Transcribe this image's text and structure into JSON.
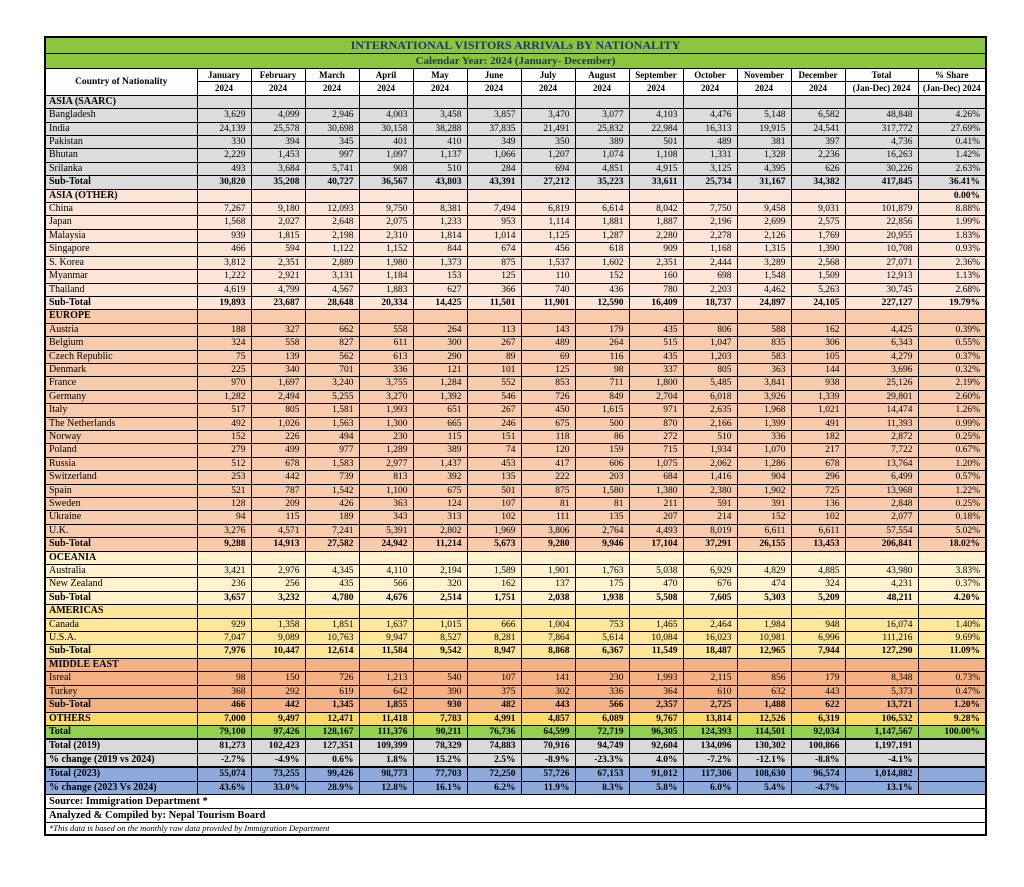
{
  "title": "INTERNATIONAL VISITORS ARRIVALs BY NATIONALITY",
  "subtitle": "Calendar Year: 2024 (January- December)",
  "colors": {
    "header_green": "#8cc63e",
    "band_green": "#92d050",
    "navy_text": "#1f3864",
    "saarc_gray": "#dcdcdc",
    "asia_other_peach": "#fce4d6",
    "europe_peach": "#f8cbad",
    "oceania_cream": "#fff2cc",
    "americas_yellow": "#ffe699",
    "middle_east_orange": "#f4b183",
    "others_gold": "#ffd966",
    "summary_gray": "#d9d9d9",
    "summary_blue": "#8eaadb"
  },
  "columns": {
    "country": "Country of Nationality",
    "months": [
      "January",
      "February",
      "March",
      "April",
      "May",
      "June",
      "July",
      "August",
      "September",
      "October",
      "November",
      "December"
    ],
    "year": "2024",
    "total_label": "Total",
    "total_sub": "(Jan-Dec) 2024",
    "share_label": "% Share",
    "share_sub": "(Jan-Dec) 2024"
  },
  "sections": [
    {
      "name": "ASIA (SAARC)",
      "bg": "#dcdcdc",
      "header_share": "",
      "countries": [
        {
          "name": "Bangladesh",
          "values": [
            "3,629",
            "4,099",
            "2,946",
            "4,003",
            "3,458",
            "3,857",
            "3,470",
            "3,077",
            "4,103",
            "4,476",
            "5,148",
            "6,582"
          ],
          "total": "48,848",
          "share": "4.26%"
        },
        {
          "name": "India",
          "values": [
            "24,139",
            "25,578",
            "30,698",
            "30,158",
            "38,288",
            "37,835",
            "21,491",
            "25,832",
            "22,984",
            "16,313",
            "19,915",
            "24,541"
          ],
          "total": "317,772",
          "share": "27.69%"
        },
        {
          "name": "Pakistan",
          "values": [
            "330",
            "394",
            "345",
            "401",
            "410",
            "349",
            "350",
            "389",
            "501",
            "489",
            "381",
            "397"
          ],
          "total": "4,736",
          "share": "0.41%"
        },
        {
          "name": "Bhutan",
          "values": [
            "2,229",
            "1,453",
            "997",
            "1,097",
            "1,137",
            "1,066",
            "1,207",
            "1,074",
            "1,108",
            "1,331",
            "1,328",
            "2,236"
          ],
          "total": "16,263",
          "share": "1.42%"
        },
        {
          "name": "Srilanka",
          "values": [
            "493",
            "3,684",
            "5,741",
            "908",
            "510",
            "284",
            "694",
            "4,851",
            "4,915",
            "3,125",
            "4,395",
            "626"
          ],
          "total": "30,226",
          "share": "2.63%"
        }
      ],
      "subtotal": {
        "name": "Sub-Total",
        "values": [
          "30,820",
          "35,208",
          "40,727",
          "36,567",
          "43,803",
          "43,391",
          "27,212",
          "35,223",
          "33,611",
          "25,734",
          "31,167",
          "34,382"
        ],
        "total": "417,845",
        "share": "36.41%"
      }
    },
    {
      "name": "ASIA (OTHER)",
      "bg": "#fce4d6",
      "header_share": "0.00%",
      "countries": [
        {
          "name": "China",
          "values": [
            "7,267",
            "9,180",
            "12,093",
            "9,750",
            "8,381",
            "7,494",
            "6,819",
            "6,614",
            "8,042",
            "7,750",
            "9,458",
            "9,031"
          ],
          "total": "101,879",
          "share": "8.88%"
        },
        {
          "name": "Japan",
          "values": [
            "1,568",
            "2,027",
            "2,648",
            "2,075",
            "1,233",
            "953",
            "1,114",
            "1,881",
            "1,887",
            "2,196",
            "2,699",
            "2,575"
          ],
          "total": "22,856",
          "share": "1.99%"
        },
        {
          "name": "Malaysia",
          "values": [
            "939",
            "1,815",
            "2,198",
            "2,310",
            "1,814",
            "1,014",
            "1,125",
            "1,287",
            "2,280",
            "2,278",
            "2,126",
            "1,769"
          ],
          "total": "20,955",
          "share": "1.83%"
        },
        {
          "name": "Singapore",
          "values": [
            "466",
            "594",
            "1,122",
            "1,152",
            "844",
            "674",
            "456",
            "618",
            "909",
            "1,168",
            "1,315",
            "1,390"
          ],
          "total": "10,708",
          "share": "0.93%"
        },
        {
          "name": "S. Korea",
          "values": [
            "3,812",
            "2,351",
            "2,889",
            "1,980",
            "1,373",
            "875",
            "1,537",
            "1,602",
            "2,351",
            "2,444",
            "3,289",
            "2,568"
          ],
          "total": "27,071",
          "share": "2.36%"
        },
        {
          "name": "Myanmar",
          "values": [
            "1,222",
            "2,921",
            "3,131",
            "1,184",
            "153",
            "125",
            "110",
            "152",
            "160",
            "698",
            "1,548",
            "1,509"
          ],
          "total": "12,913",
          "share": "1.13%"
        },
        {
          "name": "Thailand",
          "values": [
            "4,619",
            "4,799",
            "4,567",
            "1,883",
            "627",
            "366",
            "740",
            "436",
            "780",
            "2,203",
            "4,462",
            "5,263"
          ],
          "total": "30,745",
          "share": "2.68%"
        }
      ],
      "subtotal": {
        "name": "Sub-Total",
        "values": [
          "19,893",
          "23,687",
          "28,648",
          "20,334",
          "14,425",
          "11,501",
          "11,901",
          "12,590",
          "16,409",
          "18,737",
          "24,897",
          "24,105"
        ],
        "total": "227,127",
        "share": "19.79%"
      }
    },
    {
      "name": "EUROPE",
      "bg": "#f8cbad",
      "header_share": "",
      "countries": [
        {
          "name": "Austria",
          "values": [
            "188",
            "327",
            "662",
            "558",
            "264",
            "113",
            "143",
            "179",
            "435",
            "806",
            "588",
            "162"
          ],
          "total": "4,425",
          "share": "0.39%"
        },
        {
          "name": "Belgium",
          "values": [
            "324",
            "558",
            "827",
            "611",
            "300",
            "267",
            "489",
            "264",
            "515",
            "1,047",
            "835",
            "306"
          ],
          "total": "6,343",
          "share": "0.55%"
        },
        {
          "name": "Czech Republic",
          "values": [
            "75",
            "139",
            "562",
            "613",
            "290",
            "89",
            "69",
            "116",
            "435",
            "1,203",
            "583",
            "105"
          ],
          "total": "4,279",
          "share": "0.37%"
        },
        {
          "name": "Denmark",
          "values": [
            "225",
            "340",
            "701",
            "336",
            "121",
            "101",
            "125",
            "98",
            "337",
            "805",
            "363",
            "144"
          ],
          "total": "3,696",
          "share": "0.32%"
        },
        {
          "name": "France",
          "values": [
            "970",
            "1,697",
            "3,240",
            "3,755",
            "1,284",
            "552",
            "853",
            "711",
            "1,800",
            "5,485",
            "3,841",
            "938"
          ],
          "total": "25,126",
          "share": "2.19%"
        },
        {
          "name": "Germany",
          "values": [
            "1,282",
            "2,494",
            "5,255",
            "3,270",
            "1,392",
            "546",
            "726",
            "849",
            "2,704",
            "6,018",
            "3,926",
            "1,339"
          ],
          "total": "29,801",
          "share": "2.60%"
        },
        {
          "name": "Italy",
          "values": [
            "517",
            "805",
            "1,581",
            "1,993",
            "651",
            "267",
            "450",
            "1,615",
            "971",
            "2,635",
            "1,968",
            "1,021"
          ],
          "total": "14,474",
          "share": "1.26%"
        },
        {
          "name": "The Netherlands",
          "values": [
            "492",
            "1,026",
            "1,563",
            "1,300",
            "665",
            "246",
            "675",
            "500",
            "870",
            "2,166",
            "1,399",
            "491"
          ],
          "total": "11,393",
          "share": "0.99%"
        },
        {
          "name": "Norway",
          "values": [
            "152",
            "226",
            "494",
            "230",
            "115",
            "151",
            "118",
            "86",
            "272",
            "510",
            "336",
            "182"
          ],
          "total": "2,872",
          "share": "0.25%"
        },
        {
          "name": "Poland",
          "values": [
            "279",
            "499",
            "977",
            "1,289",
            "389",
            "74",
            "120",
            "159",
            "715",
            "1,934",
            "1,070",
            "217"
          ],
          "total": "7,722",
          "share": "0.67%"
        },
        {
          "name": "Russia",
          "values": [
            "512",
            "678",
            "1,583",
            "2,977",
            "1,437",
            "453",
            "417",
            "606",
            "1,075",
            "2,062",
            "1,286",
            "678"
          ],
          "total": "13,764",
          "share": "1.20%"
        },
        {
          "name": "Switzerland",
          "values": [
            "253",
            "442",
            "739",
            "813",
            "392",
            "135",
            "222",
            "203",
            "684",
            "1,416",
            "904",
            "296"
          ],
          "total": "6,499",
          "share": "0.57%"
        },
        {
          "name": "Spain",
          "values": [
            "521",
            "787",
            "1,542",
            "1,100",
            "675",
            "501",
            "875",
            "1,580",
            "1,380",
            "2,380",
            "1,902",
            "725"
          ],
          "total": "13,968",
          "share": "1.22%"
        },
        {
          "name": "Sweden",
          "values": [
            "128",
            "209",
            "426",
            "363",
            "124",
            "107",
            "81",
            "81",
            "211",
            "591",
            "391",
            "136"
          ],
          "total": "2,848",
          "share": "0.25%"
        },
        {
          "name": "Ukraine",
          "values": [
            "94",
            "115",
            "189",
            "343",
            "313",
            "102",
            "111",
            "135",
            "207",
            "214",
            "152",
            "102"
          ],
          "total": "2,077",
          "share": "0.18%"
        },
        {
          "name": "U.K.",
          "values": [
            "3,276",
            "4,571",
            "7,241",
            "5,391",
            "2,802",
            "1,969",
            "3,806",
            "2,764",
            "4,493",
            "8,019",
            "6,611",
            "6,611"
          ],
          "total": "57,554",
          "share": "5.02%"
        }
      ],
      "subtotal": {
        "name": "Sub-Total",
        "values": [
          "9,288",
          "14,913",
          "27,582",
          "24,942",
          "11,214",
          "5,673",
          "9,280",
          "9,946",
          "17,104",
          "37,291",
          "26,155",
          "13,453"
        ],
        "total": "206,841",
        "share": "18.02%"
      }
    },
    {
      "name": "OCEANIA",
      "bg": "#fff2cc",
      "header_share": "",
      "countries": [
        {
          "name": "Australia",
          "values": [
            "3,421",
            "2,976",
            "4,345",
            "4,110",
            "2,194",
            "1,589",
            "1,901",
            "1,763",
            "5,038",
            "6,929",
            "4,829",
            "4,885"
          ],
          "total": "43,980",
          "share": "3.83%"
        },
        {
          "name": "New Zealand",
          "values": [
            "236",
            "256",
            "435",
            "566",
            "320",
            "162",
            "137",
            "175",
            "470",
            "676",
            "474",
            "324"
          ],
          "total": "4,231",
          "share": "0.37%"
        }
      ],
      "subtotal": {
        "name": "Sub-Total",
        "values": [
          "3,657",
          "3,232",
          "4,780",
          "4,676",
          "2,514",
          "1,751",
          "2,038",
          "1,938",
          "5,508",
          "7,605",
          "5,303",
          "5,209"
        ],
        "total": "48,211",
        "share": "4.20%"
      }
    },
    {
      "name": "AMERICAS",
      "bg": "#ffe699",
      "header_share": "",
      "countries": [
        {
          "name": "Canada",
          "values": [
            "929",
            "1,358",
            "1,851",
            "1,637",
            "1,015",
            "666",
            "1,004",
            "753",
            "1,465",
            "2,464",
            "1,984",
            "948"
          ],
          "total": "16,074",
          "share": "1.40%"
        },
        {
          "name": "U.S.A.",
          "values": [
            "7,047",
            "9,089",
            "10,763",
            "9,947",
            "8,527",
            "8,281",
            "7,864",
            "5,614",
            "10,084",
            "16,023",
            "10,981",
            "6,996"
          ],
          "total": "111,216",
          "share": "9.69%"
        }
      ],
      "subtotal": {
        "name": "Sub-Total",
        "values": [
          "7,976",
          "10,447",
          "12,614",
          "11,584",
          "9,542",
          "8,947",
          "8,868",
          "6,367",
          "11,549",
          "18,487",
          "12,965",
          "7,944"
        ],
        "total": "127,290",
        "share": "11.09%"
      }
    },
    {
      "name": "MIDDLE EAST",
      "bg": "#f4b183",
      "header_share": "",
      "countries": [
        {
          "name": "Isreal",
          "values": [
            "98",
            "150",
            "726",
            "1,213",
            "540",
            "107",
            "141",
            "230",
            "1,993",
            "2,115",
            "856",
            "179"
          ],
          "total": "8,348",
          "share": "0.73%"
        },
        {
          "name": "Turkey",
          "values": [
            "368",
            "292",
            "619",
            "642",
            "390",
            "375",
            "302",
            "336",
            "364",
            "610",
            "632",
            "443"
          ],
          "total": "5,373",
          "share": "0.47%"
        }
      ],
      "subtotal": {
        "name": "Sub-Total",
        "values": [
          "466",
          "442",
          "1,345",
          "1,855",
          "930",
          "482",
          "443",
          "566",
          "2,357",
          "2,725",
          "1,488",
          "622"
        ],
        "total": "13,721",
        "share": "1.20%"
      }
    }
  ],
  "others": {
    "name": "OTHERS",
    "bg": "#ffd966",
    "values": [
      "7,000",
      "9,497",
      "12,471",
      "11,418",
      "7,783",
      "4,991",
      "4,857",
      "6,089",
      "9,767",
      "13,814",
      "12,526",
      "6,319"
    ],
    "total": "106,532",
    "share": "9.28%"
  },
  "grand_total": {
    "name": "Total",
    "bg": "#92d050",
    "values": [
      "79,100",
      "97,426",
      "128,167",
      "111,376",
      "90,211",
      "76,736",
      "64,599",
      "72,719",
      "96,305",
      "124,393",
      "114,501",
      "92,034"
    ],
    "total": "1,147,567",
    "share": "100.00%"
  },
  "summary": [
    {
      "type": "spacer"
    },
    {
      "type": "row",
      "name": "Total (2019)",
      "bg": "#d9d9d9",
      "values": [
        "81,273",
        "102,423",
        "127,351",
        "109,399",
        "78,329",
        "74,883",
        "70,916",
        "94,749",
        "92,604",
        "134,096",
        "130,302",
        "100,866"
      ],
      "total": "1,197,191",
      "share": ""
    },
    {
      "type": "row",
      "name": "% change (2019 vs 2024)",
      "bg": "#d9d9d9",
      "values": [
        "-2.7%",
        "-4.9%",
        "0.6%",
        "1.8%",
        "15.2%",
        "2.5%",
        "-8.9%",
        "-23.3%",
        "4.0%",
        "-7.2%",
        "-12.1%",
        "-8.8%"
      ],
      "total": "-4.1%",
      "share": ""
    },
    {
      "type": "spacer"
    },
    {
      "type": "row",
      "name": "Total (2023)",
      "bg": "#8eaadb",
      "values": [
        "55,074",
        "73,255",
        "99,426",
        "98,773",
        "77,703",
        "72,250",
        "57,726",
        "67,153",
        "91,012",
        "117,306",
        "108,630",
        "96,574"
      ],
      "total": "1,014,882",
      "share": ""
    },
    {
      "type": "row",
      "name": "% change (2023 Vs 2024)",
      "bg": "#8eaadb",
      "values": [
        "43.6%",
        "33.0%",
        "28.9%",
        "12.8%",
        "16.1%",
        "6.2%",
        "11.9%",
        "8.3%",
        "5.8%",
        "6.0%",
        "5.4%",
        "-4.7%"
      ],
      "total": "13.1%",
      "share": ""
    }
  ],
  "footer": {
    "source": "Source: Immigration Department *",
    "credit": "Analyzed & Compiled by: Nepal Tourism Board",
    "note": "*This data is based on the monthly raw data provided by Immigration Department"
  }
}
